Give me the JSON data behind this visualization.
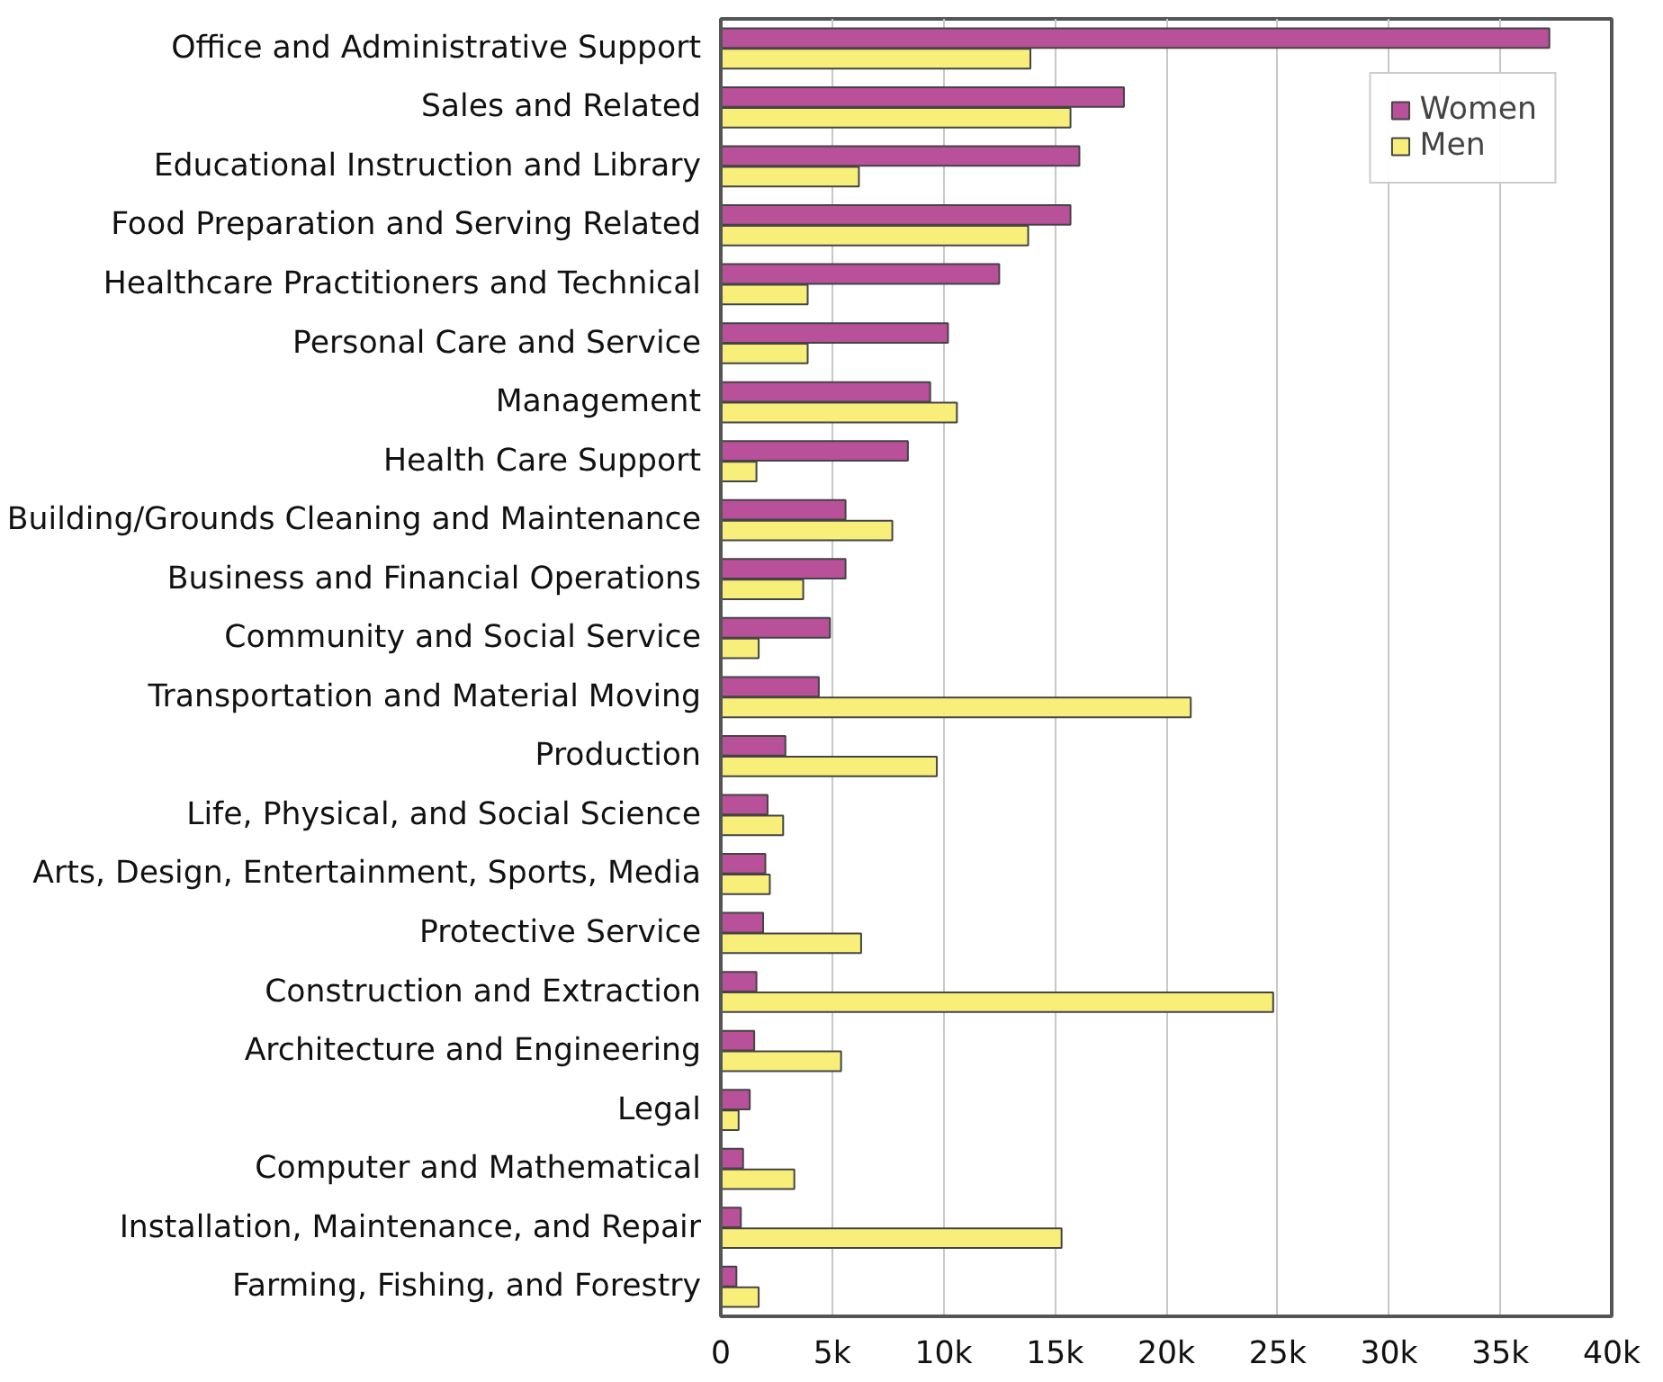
{
  "chart_data": {
    "type": "bar",
    "orientation": "horizontal",
    "categories": [
      "Office and Administrative Support",
      "Sales and Related",
      "Educational Instruction and Library",
      "Food Preparation and Serving Related",
      "Healthcare Practitioners and Technical",
      "Personal Care and Service",
      "Management",
      "Health Care Support",
      "Building/Grounds Cleaning and Maintenance",
      "Business and Financial Operations",
      "Community and Social Service",
      "Transportation and Material Moving",
      "Production",
      "Life, Physical, and Social Science",
      "Arts, Design, Entertainment, Sports, Media",
      "Protective Service",
      "Construction and Extraction",
      "Architecture and Engineering",
      "Legal",
      "Computer and Mathematical",
      "Installation, Maintenance, and Repair",
      "Farming, Fishing, and Forestry"
    ],
    "series": [
      {
        "name": "Women",
        "color": "#b8509a",
        "values": [
          37200,
          18100,
          16100,
          15700,
          12500,
          10200,
          9400,
          8400,
          5600,
          5600,
          4900,
          4400,
          2900,
          2100,
          2000,
          1900,
          1600,
          1500,
          1300,
          1000,
          900,
          700
        ]
      },
      {
        "name": "Men",
        "color": "#f8ef7a",
        "values": [
          13900,
          15700,
          6200,
          13800,
          3900,
          3900,
          10600,
          1600,
          7700,
          3700,
          1700,
          21100,
          9700,
          2800,
          2200,
          6300,
          24800,
          5400,
          800,
          3300,
          15300,
          1700
        ]
      }
    ],
    "xlim": [
      0,
      40000
    ],
    "xticks": [
      0,
      {
        "value": 5000,
        "label": "5k"
      },
      {
        "value": 10000,
        "label": "10k"
      },
      {
        "value": 15000,
        "label": "15k"
      },
      {
        "value": 20000,
        "label": "20k"
      },
      {
        "value": 25000,
        "label": "25k"
      },
      {
        "value": 30000,
        "label": "30k"
      },
      {
        "value": 35000,
        "label": "35k"
      },
      {
        "value": 40000,
        "label": "40k"
      }
    ],
    "grid": "x",
    "legend": "top right"
  }
}
